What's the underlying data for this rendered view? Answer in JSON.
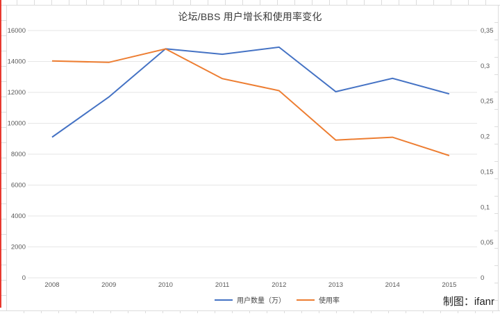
{
  "page": {
    "credit": "制图：ifanr"
  },
  "colors": {
    "accent_red": "#e8392f",
    "grid": "#e6e6e6",
    "axis_text": "#595959",
    "series_users": "#4472c4",
    "series_rate": "#ed7d31"
  },
  "chart_data": {
    "type": "line",
    "title": "论坛/BBS 用户增长和使用率变化",
    "categories": [
      "2008",
      "2009",
      "2010",
      "2011",
      "2012",
      "2013",
      "2014",
      "2015"
    ],
    "series": [
      {
        "name": "用户数量（万）",
        "axis": "left",
        "color": "#4472c4",
        "values": [
          9100,
          11701,
          14817,
          14469,
          14925,
          12046,
          12908,
          11901
        ]
      },
      {
        "name": "使用率",
        "axis": "right",
        "color": "#ed7d31",
        "values": [
          0.307,
          0.305,
          0.324,
          0.282,
          0.265,
          0.195,
          0.199,
          0.173
        ]
      }
    ],
    "left_axis": {
      "min": 0,
      "max": 16000,
      "step": 2000,
      "tick_labels": [
        "0",
        "2000",
        "4000",
        "6000",
        "8000",
        "10000",
        "12000",
        "14000",
        "16000"
      ]
    },
    "right_axis": {
      "min": 0,
      "max": 0.35,
      "step": 0.05,
      "tick_labels": [
        "0",
        "0,05",
        "0,1",
        "0,15",
        "0,2",
        "0,25",
        "0,3",
        "0,35"
      ]
    },
    "grid": true,
    "legend_position": "bottom"
  }
}
